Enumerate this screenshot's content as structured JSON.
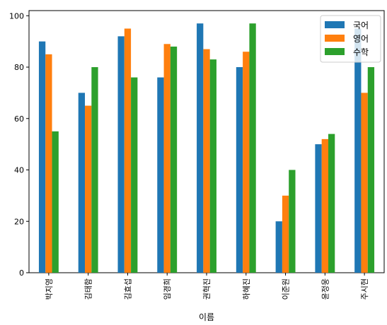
{
  "chart_data": {
    "type": "bar",
    "title": "",
    "xlabel": "이름",
    "ylabel": "",
    "ylim": [
      0,
      102
    ],
    "yticks": [
      0,
      20,
      40,
      60,
      80,
      100
    ],
    "grid": false,
    "legend_position": "top-right",
    "categories": [
      "박지영",
      "김태함",
      "김효섭",
      "임경희",
      "권혁진",
      "하혜진",
      "이준원",
      "윤정웅",
      "주시현"
    ],
    "series": [
      {
        "name": "국어",
        "color": "#1f77b4",
        "values": [
          90,
          70,
          92,
          76,
          97,
          80,
          20,
          50,
          95
        ]
      },
      {
        "name": "영어",
        "color": "#ff7f0e",
        "values": [
          85,
          65,
          95,
          89,
          87,
          86,
          30,
          52,
          70
        ]
      },
      {
        "name": "수학",
        "color": "#2ca02c",
        "values": [
          55,
          80,
          76,
          88,
          83,
          97,
          40,
          54,
          80
        ]
      }
    ]
  }
}
